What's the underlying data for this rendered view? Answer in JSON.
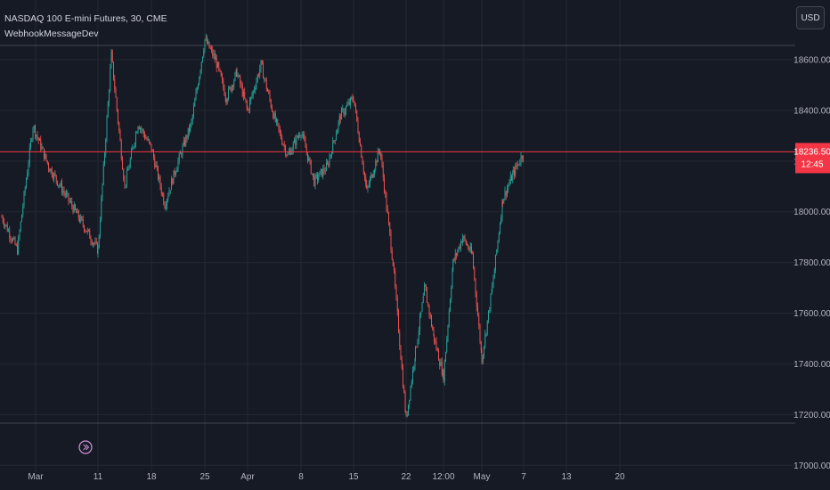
{
  "header": {
    "symbol_line": "NASDAQ 100 E-mini Futures, 30, CME",
    "indicator": "WebhookMessageDev"
  },
  "currency_button": "USD",
  "price_label": {
    "price": "18236.50",
    "countdown": "12:45"
  },
  "colors": {
    "up": "#26a69a",
    "down": "#ef5350",
    "price_line": "#f23645",
    "grid": "#242833",
    "background": "#161a25",
    "alert_icon": "#ce93d8"
  },
  "icons": {
    "alert": "bar-replay-alert-icon"
  },
  "chart_data": {
    "type": "candlestick",
    "title": "",
    "x_ticks": [
      "Mar",
      "11",
      "18",
      "25",
      "Apr",
      "8",
      "15",
      "22",
      "12:00",
      "May",
      "7",
      "13",
      "20"
    ],
    "y_ticks": [
      "17000.00",
      "17200.00",
      "17400.00",
      "17600.00",
      "17800.00",
      "18000.00",
      "18200.00",
      "18400.00",
      "18600.00"
    ],
    "ylim": [
      16980,
      18730
    ],
    "grid": true,
    "last_price": 18236.5,
    "price_path": [
      [
        "Mar",
        17980
      ],
      [
        "Mar",
        17850
      ],
      [
        "Mar",
        18340
      ],
      [
        "Mar",
        18180
      ],
      [
        "11",
        17850
      ],
      [
        "11",
        18620
      ],
      [
        "11",
        18100
      ],
      [
        "11",
        18350
      ],
      [
        "18",
        18250
      ],
      [
        "18",
        18030
      ],
      [
        "18",
        18200
      ],
      [
        "18",
        18350
      ],
      [
        "25",
        18680
      ],
      [
        "25",
        18600
      ],
      [
        "25",
        18450
      ],
      [
        "25",
        18550
      ],
      [
        "Apr",
        18400
      ],
      [
        "Apr",
        18580
      ],
      [
        "Apr",
        18370
      ],
      [
        "Apr",
        18220
      ],
      [
        "8",
        18320
      ],
      [
        "8",
        18120
      ],
      [
        "8",
        18180
      ],
      [
        "8",
        18380
      ],
      [
        "15",
        18450
      ],
      [
        "15",
        18080
      ],
      [
        "15",
        18250
      ],
      [
        "15",
        17800
      ],
      [
        "22",
        17180
      ],
      [
        "22",
        17450
      ],
      [
        "22",
        17700
      ],
      [
        "22",
        17500
      ],
      [
        "12:00",
        17350
      ],
      [
        "12:00",
        17800
      ],
      [
        "12:00",
        17900
      ],
      [
        "12:00",
        17830
      ],
      [
        "May",
        17420
      ],
      [
        "May",
        17700
      ],
      [
        "May",
        18050
      ],
      [
        "May",
        18150
      ],
      [
        "7",
        18236.5
      ]
    ]
  }
}
